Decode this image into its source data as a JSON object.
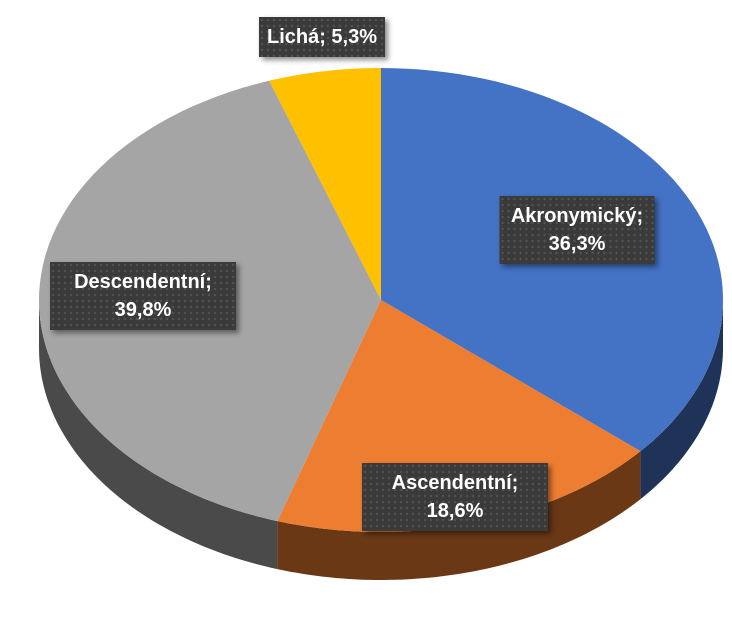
{
  "chart_data": {
    "type": "pie",
    "categories": [
      "Akronymický",
      "Ascendentní",
      "Descendentní",
      "Lichá"
    ],
    "values": [
      36.3,
      18.6,
      39.8,
      5.3
    ],
    "value_labels": [
      "Akronymický; 36,3%",
      "Ascendentní; 18,6%",
      "Descendentní; 39,8%",
      "Lichá; 5,3%"
    ],
    "colors": [
      "#4472c4",
      "#ed7d31",
      "#a5a5a5",
      "#ffc000"
    ]
  }
}
